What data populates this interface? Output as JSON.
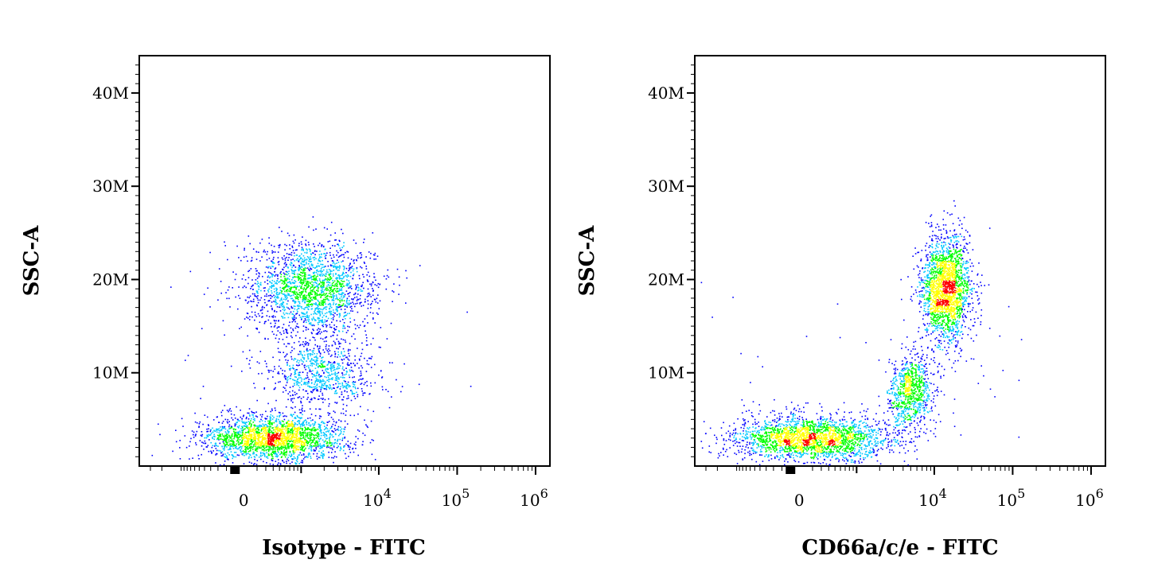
{
  "chart_data": [
    {
      "type": "scatter",
      "style": "density-dot-plot",
      "xlabel": "Isotype - FITC",
      "ylabel": "SSC-A",
      "x_scale": "biexponential",
      "x_ticks": [
        {
          "label": "0"
        },
        {
          "base": "10",
          "exp": "4"
        },
        {
          "base": "10",
          "exp": "5"
        },
        {
          "base": "10",
          "exp": "6"
        }
      ],
      "y_ticks": [
        "10M",
        "20M",
        "30M",
        "40M"
      ],
      "ylim": [
        0,
        44000000
      ],
      "density_colors": [
        "#0000ff",
        "#00c8ff",
        "#00ff00",
        "#ffff00",
        "#ff0000"
      ],
      "populations": [
        {
          "name": "lower cluster",
          "x_center": 400,
          "x_range": [
            -1500,
            2000
          ],
          "y_center": 3000000,
          "y_range": [
            1500000,
            7000000
          ],
          "relative_density": "highest"
        },
        {
          "name": "middle cluster",
          "x_center": 1800,
          "x_range": [
            0,
            4500
          ],
          "y_center": 10000000,
          "y_range": [
            6000000,
            14000000
          ],
          "relative_density": "low"
        },
        {
          "name": "upper cluster",
          "x_center": 1400,
          "x_range": [
            -300,
            4500
          ],
          "y_center": 19000000,
          "y_range": [
            14000000,
            25000000
          ],
          "relative_density": "high"
        }
      ]
    },
    {
      "type": "scatter",
      "style": "density-dot-plot",
      "xlabel": "CD66a/c/e - FITC",
      "ylabel": "SSC-A",
      "x_scale": "biexponential",
      "x_ticks": [
        {
          "label": "0"
        },
        {
          "base": "10",
          "exp": "4"
        },
        {
          "base": "10",
          "exp": "5"
        },
        {
          "base": "10",
          "exp": "6"
        }
      ],
      "y_ticks": [
        "10M",
        "20M",
        "30M",
        "40M"
      ],
      "ylim": [
        0,
        44000000
      ],
      "density_colors": [
        "#0000ff",
        "#00c8ff",
        "#00ff00",
        "#ffff00",
        "#ff0000"
      ],
      "populations": [
        {
          "name": "lower cluster",
          "x_center": 200,
          "x_range": [
            -2000,
            3000
          ],
          "y_center": 3000000,
          "y_range": [
            1500000,
            7000000
          ],
          "relative_density": "highest"
        },
        {
          "name": "intermediate cluster",
          "x_center": 5000,
          "x_range": [
            2000,
            9000
          ],
          "y_center": 8000000,
          "y_range": [
            4000000,
            13000000
          ],
          "relative_density": "low"
        },
        {
          "name": "upper cluster",
          "x_center": 14000,
          "x_range": [
            7000,
            35000
          ],
          "y_center": 19000000,
          "y_range": [
            12000000,
            25000000
          ],
          "relative_density": "high"
        }
      ]
    }
  ]
}
